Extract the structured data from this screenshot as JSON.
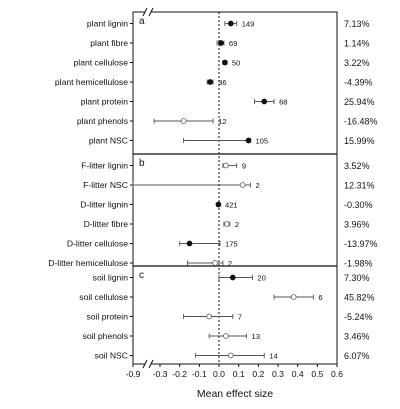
{
  "chart_data": {
    "type": "scatter",
    "xlabel": "Mean effect size",
    "axis_break": "between -0.9 and -0.3",
    "x_ticks": [
      "-0.9",
      "-0.3",
      "-0.2",
      "-0.1",
      "0.0",
      "0.1",
      "0.2",
      "0.3",
      "0.4",
      "0.5",
      "0.6"
    ],
    "xlim": [
      -0.9,
      0.6
    ],
    "reference_line": 0,
    "panels": [
      {
        "letter": "a",
        "rows": [
          {
            "label": "plant lignin",
            "mean": 0.06,
            "ci": [
              0.03,
              0.09
            ],
            "n": "149",
            "percent": "7.13%",
            "filled": true
          },
          {
            "label": "plant fibre",
            "mean": 0.01,
            "ci": [
              -0.01,
              0.025
            ],
            "n": "69",
            "percent": "1.14%",
            "filled": true
          },
          {
            "label": "plant cellulose",
            "mean": 0.03,
            "ci": [
              0.02,
              0.04
            ],
            "n": "50",
            "percent": "3.22%",
            "filled": true
          },
          {
            "label": "plant hemicellulose",
            "mean": -0.045,
            "ci": [
              -0.06,
              -0.03
            ],
            "n": "36",
            "percent": "-4.39%",
            "filled": true
          },
          {
            "label": "plant protein",
            "mean": 0.23,
            "ci": [
              0.18,
              0.28
            ],
            "n": "68",
            "percent": "25.94%",
            "filled": true
          },
          {
            "label": "plant phenols",
            "mean": -0.18,
            "ci": [
              -0.33,
              -0.03
            ],
            "n": "12",
            "percent": "-16.48%",
            "filled": false
          },
          {
            "label": "plant NSC",
            "mean": 0.15,
            "ci": [
              -0.18,
              0.16
            ],
            "n": "105",
            "percent": "15.99%",
            "filled": true
          }
        ]
      },
      {
        "letter": "b",
        "rows": [
          {
            "label": "F-litter lignin",
            "mean": 0.035,
            "ci": [
              0.02,
              0.09
            ],
            "n": "9",
            "percent": "3.52%",
            "filled": false
          },
          {
            "label": "F-litter NSC",
            "mean": 0.12,
            "ci": [
              -0.9,
              0.16
            ],
            "n": "2",
            "percent": "12.31%",
            "filled": false
          },
          {
            "label": "D-litter lignin",
            "mean": -0.003,
            "ci": [
              -0.01,
              0.005
            ],
            "n": "421",
            "percent": "-0.30%",
            "filled": true
          },
          {
            "label": "D-litter fibre",
            "mean": 0.04,
            "ci": [
              0.025,
              0.055
            ],
            "n": "2",
            "percent": "3.96%",
            "filled": false
          },
          {
            "label": "D-litter cellulose",
            "mean": -0.15,
            "ci": [
              -0.2,
              0.005
            ],
            "n": "175",
            "percent": "-13.97%",
            "filled": true
          },
          {
            "label": "D-litter hemicellulose",
            "mean": -0.02,
            "ci": [
              -0.16,
              0.02
            ],
            "n": "2",
            "percent": "-1.98%",
            "filled": false
          }
        ]
      },
      {
        "letter": "c",
        "rows": [
          {
            "label": "soil lignin",
            "mean": 0.07,
            "ci": [
              0.0,
              0.17
            ],
            "n": "20",
            "percent": "7.30%",
            "filled": true
          },
          {
            "label": "soil cellulose",
            "mean": 0.38,
            "ci": [
              0.28,
              0.48
            ],
            "n": "6",
            "percent": "45.82%",
            "filled": false
          },
          {
            "label": "soil protein",
            "mean": -0.05,
            "ci": [
              -0.18,
              0.07
            ],
            "n": "7",
            "percent": "-5.24%",
            "filled": false
          },
          {
            "label": "soil phenols",
            "mean": 0.035,
            "ci": [
              -0.05,
              0.14
            ],
            "n": "13",
            "percent": "3.46%",
            "filled": false
          },
          {
            "label": "soil NSC",
            "mean": 0.06,
            "ci": [
              -0.12,
              0.23
            ],
            "n": "14",
            "percent": "6.07%",
            "filled": false
          }
        ]
      }
    ]
  }
}
